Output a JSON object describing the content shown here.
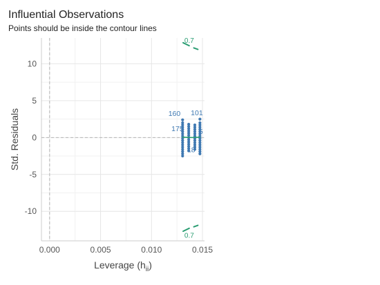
{
  "chart_data": {
    "type": "scatter",
    "title": "Influential Observations",
    "subtitle": "Points should be inside the contour lines",
    "xlabel": "Leverage (h",
    "xlabel_subscript": "ii",
    "xlabel_suffix": ")",
    "ylabel": "Std. Residuals",
    "xlim": [
      -0.0008,
      0.0152
    ],
    "ylim": [
      -14.0,
      13.5
    ],
    "x_ticks": [
      0.0,
      0.005,
      0.01,
      0.015
    ],
    "x_tick_labels": [
      "0.000",
      "0.005",
      "0.010",
      "0.015"
    ],
    "y_ticks": [
      -10,
      -5,
      0,
      5,
      10
    ],
    "y_tick_labels": [
      "-10",
      "-5",
      "0",
      "5",
      "10"
    ],
    "grid": true,
    "reference_lines": {
      "x": 0,
      "y": 0
    },
    "colors": {
      "points": "#3f79b2",
      "contour": "#2a9d72",
      "contour_label": "#2a9d72",
      "point_label": "#3f79b2",
      "loess": "#2a9d72",
      "grid": "#e6e6e6",
      "axis_text": "#555555",
      "title": "#222222"
    },
    "point_columns": [
      {
        "x": 0.01305,
        "y_values": [
          -2.5,
          -2.2,
          -1.9,
          -1.6,
          -1.3,
          -1.0,
          -0.7,
          -0.4,
          -0.1,
          0.2,
          0.5,
          0.8,
          1.1,
          1.4,
          1.7,
          2.0,
          2.4
        ]
      },
      {
        "x": 0.01365,
        "y_values": [
          -1.8,
          -1.5,
          -1.2,
          -0.9,
          -0.6,
          -0.3,
          0.0,
          0.3,
          0.6,
          0.9,
          1.2,
          1.5,
          1.8
        ]
      },
      {
        "x": 0.01425,
        "y_values": [
          -1.6,
          -1.3,
          -1.0,
          -0.7,
          -0.4,
          -0.1,
          0.2,
          0.5,
          0.8,
          1.1,
          1.4,
          1.7
        ]
      },
      {
        "x": 0.01475,
        "y_values": [
          -2.2,
          -1.9,
          -1.6,
          -1.3,
          -1.0,
          -0.7,
          -0.4,
          -0.1,
          0.2,
          0.5,
          0.8,
          1.1,
          1.4,
          1.7,
          2.0,
          2.5
        ]
      }
    ],
    "loess_line": [
      {
        "x": 0.013,
        "y": 0.05
      },
      {
        "x": 0.014,
        "y": 0.0
      },
      {
        "x": 0.0148,
        "y": 0.05
      }
    ],
    "point_labels": [
      {
        "text": "160",
        "x": 0.01225,
        "y": 3.3
      },
      {
        "text": "101",
        "x": 0.01445,
        "y": 3.4
      },
      {
        "text": "175",
        "x": 0.01255,
        "y": 1.25
      },
      {
        "text": "5",
        "x": 0.01485,
        "y": 0.85
      },
      {
        "text": "18",
        "x": 0.0139,
        "y": -1.6
      }
    ],
    "contours": [
      {
        "label": "0.7",
        "segment": [
          {
            "x": 0.0131,
            "y": 12.85
          },
          {
            "x": 0.0137,
            "y": 12.45
          }
        ],
        "label_pos": {
          "x": 0.0137,
          "y": 13.2
        }
      },
      {
        "label": "",
        "segment": [
          {
            "x": 0.01415,
            "y": 12.15
          },
          {
            "x": 0.01455,
            "y": 11.95
          }
        ],
        "label_pos": null
      },
      {
        "label": "0.7",
        "segment": [
          {
            "x": 0.0131,
            "y": -12.7
          },
          {
            "x": 0.0137,
            "y": -12.3
          }
        ],
        "label_pos": {
          "x": 0.0137,
          "y": -13.2
        }
      },
      {
        "label": "",
        "segment": [
          {
            "x": 0.01415,
            "y": -12.1
          },
          {
            "x": 0.01455,
            "y": -11.9
          }
        ],
        "label_pos": null
      }
    ]
  }
}
